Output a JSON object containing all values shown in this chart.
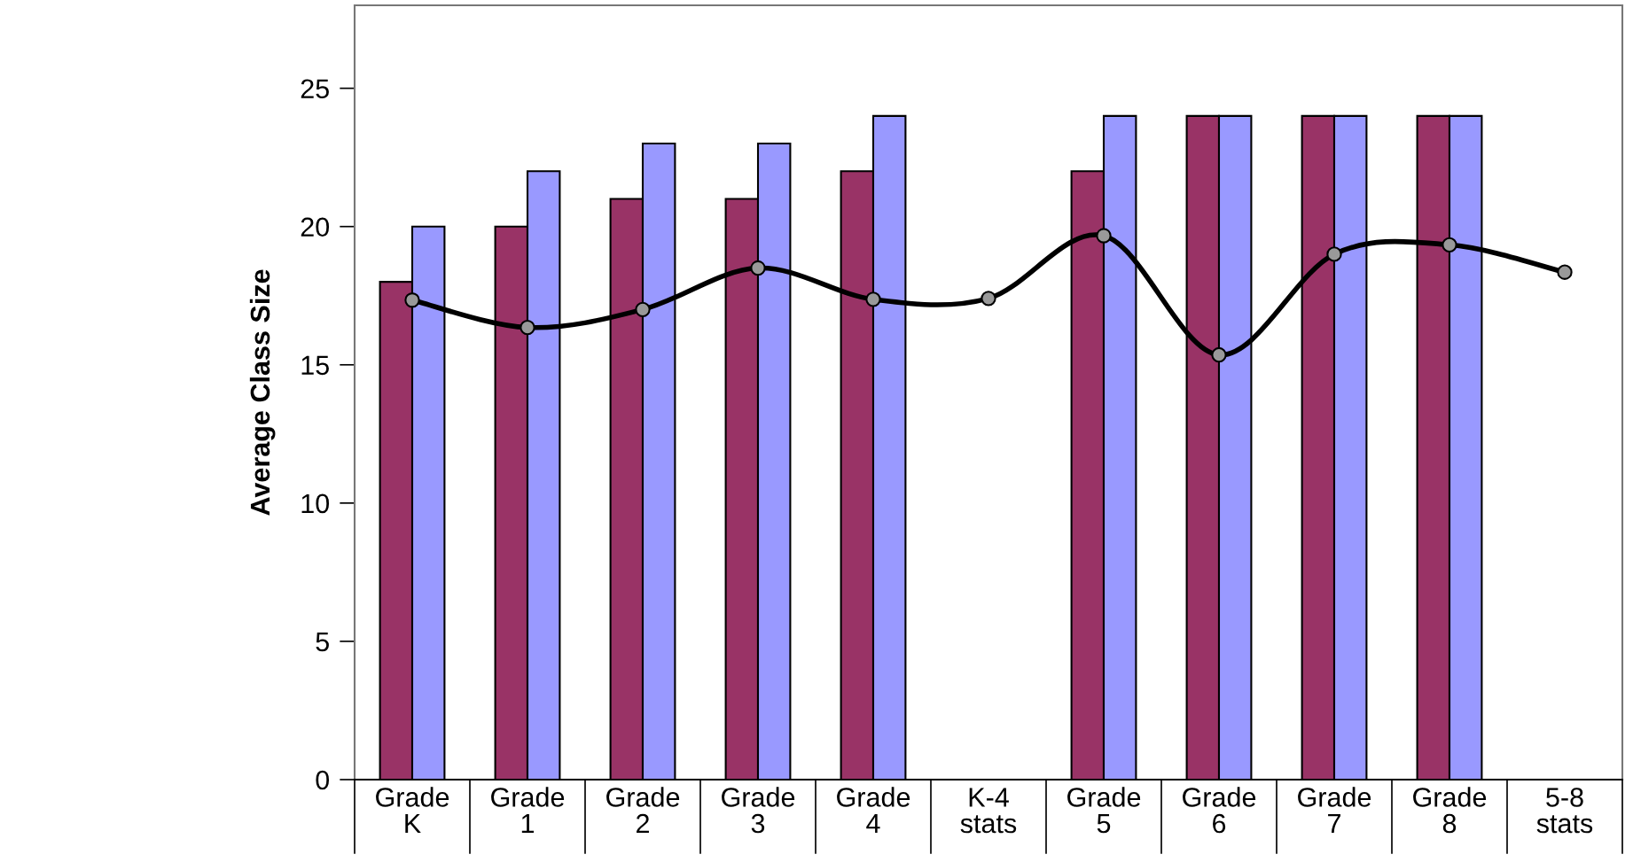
{
  "chart_data": {
    "type": "bar",
    "ylabel": "Average Class Size",
    "categories": [
      "Grade\nK",
      "Grade\n1",
      "Grade\n2",
      "Grade\n3",
      "Grade\n4",
      "K-4\nstats",
      "Grade\n5",
      "Grade\n6",
      "Grade\n7",
      "Grade\n8",
      "5-8\nstats"
    ],
    "series": [
      {
        "color": "#993366",
        "values": [
          18,
          20,
          21,
          21,
          22,
          null,
          22,
          24,
          24,
          24,
          null
        ]
      },
      {
        "color": "#9999ff",
        "values": [
          20,
          22,
          23,
          23,
          24,
          null,
          24,
          24,
          24,
          24,
          null
        ]
      },
      {
        "type": "line",
        "color": "#000000",
        "marker": "circle",
        "line_style": "solid",
        "values": [
          17.34,
          16.35,
          17.0,
          18.5,
          17.37,
          17.4,
          19.67,
          15.36,
          19.0,
          19.34,
          18.35
        ]
      }
    ],
    "ylim": [
      0,
      28
    ],
    "yticks": [
      0,
      5,
      10,
      15,
      20,
      25
    ],
    "grid": false,
    "legend": false
  }
}
